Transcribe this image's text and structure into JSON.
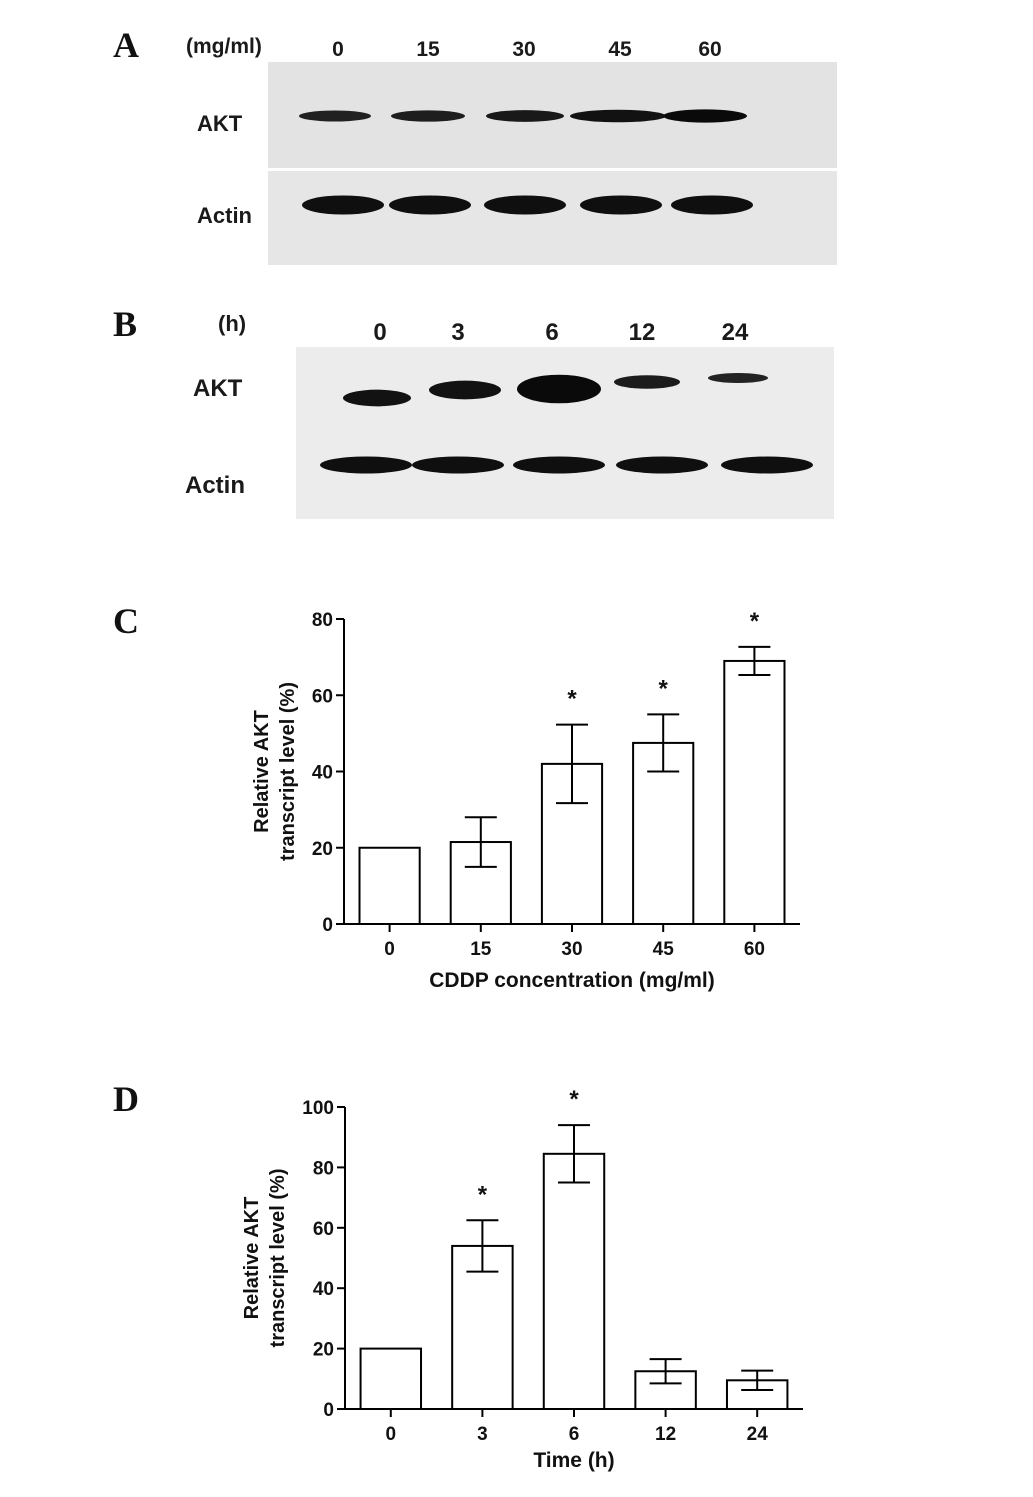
{
  "panels": {
    "A": {
      "letter": "A",
      "unit": "(mg/ml)",
      "lanes": [
        "0",
        "15",
        "30",
        "45",
        "60"
      ],
      "rows": [
        "AKT",
        "Actin"
      ],
      "band_intensity": {
        "AKT": [
          0.55,
          0.6,
          0.7,
          0.85,
          1.0
        ],
        "Actin": [
          0.9,
          0.9,
          0.9,
          0.9,
          0.9
        ]
      }
    },
    "B": {
      "letter": "B",
      "unit": "(h)",
      "lanes": [
        "0",
        "3",
        "6",
        "12",
        "24"
      ],
      "rows": [
        "AKT",
        "Actin"
      ],
      "band_intensity": {
        "AKT": [
          0.85,
          0.85,
          1.0,
          0.65,
          0.5
        ],
        "Actin": [
          0.9,
          0.9,
          0.9,
          0.9,
          0.9
        ]
      }
    },
    "C": {
      "letter": "C"
    },
    "D": {
      "letter": "D"
    }
  },
  "chart_data": [
    {
      "type": "bar",
      "panel": "C",
      "categories": [
        "0",
        "15",
        "30",
        "45",
        "60"
      ],
      "values": [
        20,
        21.5,
        42,
        47.5,
        69
      ],
      "errors": [
        0,
        6.5,
        10.3,
        7.5,
        3.7
      ],
      "significance": [
        "",
        "",
        "*",
        "*",
        "*"
      ],
      "xlabel": "CDDP concentration (mg/ml)",
      "ylabel_lines": [
        "Relative AKT",
        "transcript level (%)"
      ],
      "ylim": [
        0,
        80
      ],
      "yticks": [
        "0",
        "20",
        "40",
        "60",
        "80"
      ],
      "grid": false
    },
    {
      "type": "bar",
      "panel": "D",
      "categories": [
        "0",
        "3",
        "6",
        "12",
        "24"
      ],
      "values": [
        20,
        54,
        84.5,
        12.5,
        9.5
      ],
      "errors": [
        0,
        8.5,
        9.5,
        4,
        3.2
      ],
      "significance": [
        "",
        "*",
        "*",
        "",
        ""
      ],
      "xlabel": "Time (h)",
      "ylabel_lines": [
        "Relative AKT",
        "transcript level (%)"
      ],
      "ylim": [
        0,
        100
      ],
      "yticks": [
        "0",
        "20",
        "40",
        "60",
        "80",
        "100"
      ],
      "grid": false
    }
  ]
}
